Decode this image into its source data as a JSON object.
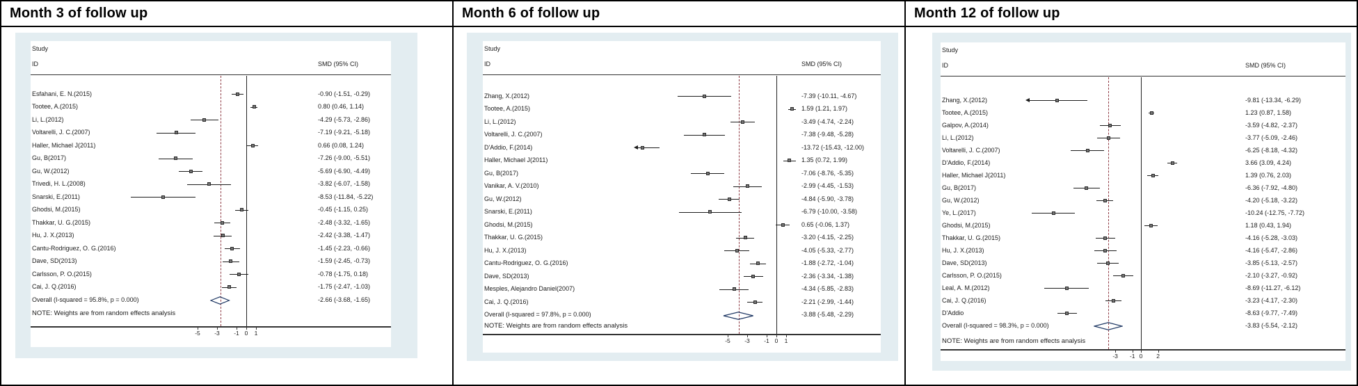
{
  "colors": {
    "graph_background": "#e3edf1",
    "plot_background": "#ffffff",
    "ci_line": "#1c1c1c",
    "marker_fill": "#757575",
    "marker_border": "#2b2b2b",
    "overall_dashed_line": "#8f3a43",
    "diamond_outline": "#1f3864",
    "axis_line": "#333333",
    "text": "#1a1a1a",
    "frame_border": "#000000"
  },
  "chart_data": [
    {
      "type": "scatter",
      "variant": "forest-plot-meta-analysis",
      "title": "Month 3 of follow up",
      "columns": {
        "study": "Study",
        "id": "ID",
        "smd": "SMD (95% CI)"
      },
      "note": "NOTE: Weights are from random effects analysis",
      "xticks": [
        -5,
        -3,
        -1,
        0,
        1
      ],
      "xlim": [
        -12.6,
        2.0
      ],
      "zero_line": 0,
      "overall_line": -2.66,
      "legend_position": "none",
      "grid": false,
      "studies": [
        {
          "id": "Esfahani, E. N.(2015)",
          "smd": -0.9,
          "lo": -1.51,
          "hi": -0.29,
          "ci_text": "-0.90 (-1.51, -0.29)"
        },
        {
          "id": "Tootee, A.(2015)",
          "smd": 0.8,
          "lo": 0.46,
          "hi": 1.14,
          "ci_text": "0.80 (0.46, 1.14)"
        },
        {
          "id": "Li, L.(2012)",
          "smd": -4.29,
          "lo": -5.73,
          "hi": -2.86,
          "ci_text": "-4.29 (-5.73, -2.86)"
        },
        {
          "id": "Voltarelli, J. C.(2007)",
          "smd": -7.19,
          "lo": -9.21,
          "hi": -5.18,
          "ci_text": "-7.19 (-9.21, -5.18)"
        },
        {
          "id": "Haller, Michael J(2011)",
          "smd": 0.66,
          "lo": 0.08,
          "hi": 1.24,
          "ci_text": "0.66 (0.08, 1.24)"
        },
        {
          "id": "Gu, B(2017)",
          "smd": -7.26,
          "lo": -9.0,
          "hi": -5.51,
          "ci_text": "-7.26 (-9.00, -5.51)"
        },
        {
          "id": "Gu, W.(2012)",
          "smd": -5.69,
          "lo": -6.9,
          "hi": -4.49,
          "ci_text": "-5.69 (-6.90, -4.49)"
        },
        {
          "id": "Trivedi, H. L.(2008)",
          "smd": -3.82,
          "lo": -6.07,
          "hi": -1.58,
          "ci_text": "-3.82 (-6.07, -1.58)"
        },
        {
          "id": "Snarski, E.(2011)",
          "smd": -8.53,
          "lo": -11.84,
          "hi": -5.22,
          "ci_text": "-8.53 (-11.84, -5.22)"
        },
        {
          "id": "Ghodsi, M.(2015)",
          "smd": -0.45,
          "lo": -1.15,
          "hi": 0.25,
          "ci_text": "-0.45 (-1.15, 0.25)"
        },
        {
          "id": "Thakkar, U. G.(2015)",
          "smd": -2.48,
          "lo": -3.32,
          "hi": -1.65,
          "ci_text": "-2.48 (-3.32, -1.65)"
        },
        {
          "id": "Hu, J. X.(2013)",
          "smd": -2.42,
          "lo": -3.38,
          "hi": -1.47,
          "ci_text": "-2.42 (-3.38, -1.47)"
        },
        {
          "id": "Cantu-Rodriguez, O. G.(2016)",
          "smd": -1.45,
          "lo": -2.23,
          "hi": -0.66,
          "ci_text": "-1.45 (-2.23, -0.66)"
        },
        {
          "id": "Dave, SD(2013)",
          "smd": -1.59,
          "lo": -2.45,
          "hi": -0.73,
          "ci_text": "-1.59 (-2.45, -0.73)"
        },
        {
          "id": "Carlsson, P. O.(2015)",
          "smd": -0.78,
          "lo": -1.75,
          "hi": 0.18,
          "ci_text": "-0.78 (-1.75, 0.18)"
        },
        {
          "id": "Cai, J. Q.(2016)",
          "smd": -1.75,
          "lo": -2.47,
          "hi": -1.03,
          "ci_text": "-1.75 (-2.47, -1.03)"
        }
      ],
      "overall": {
        "id": "Overall  (I-squared = 95.8%, p = 0.000)",
        "smd": -2.66,
        "lo": -3.68,
        "hi": -1.65,
        "ci_text": "-2.66 (-3.68, -1.65)"
      }
    },
    {
      "type": "scatter",
      "variant": "forest-plot-meta-analysis",
      "title": "Month 6 of follow up",
      "columns": {
        "study": "Study",
        "id": "ID",
        "smd": "SMD (95% CI)"
      },
      "note": "NOTE: Weights are from random effects analysis",
      "xticks": [
        -5,
        -3,
        -1,
        0,
        1
      ],
      "xlim": [
        -14.2,
        2.2
      ],
      "zero_line": 0,
      "overall_line": -3.88,
      "legend_position": "none",
      "grid": false,
      "studies": [
        {
          "id": "Zhang, X.(2012)",
          "smd": -7.39,
          "lo": -10.11,
          "hi": -4.67,
          "ci_text": "-7.39 (-10.11, -4.67)"
        },
        {
          "id": "Tootee, A.(2015)",
          "smd": 1.59,
          "lo": 1.21,
          "hi": 1.97,
          "ci_text": "1.59 (1.21, 1.97)"
        },
        {
          "id": "Li, L.(2012)",
          "smd": -3.49,
          "lo": -4.74,
          "hi": -2.24,
          "ci_text": "-3.49 (-4.74, -2.24)"
        },
        {
          "id": "Voltarelli, J. C.(2007)",
          "smd": -7.38,
          "lo": -9.48,
          "hi": -5.28,
          "ci_text": "-7.38 (-9.48, -5.28)"
        },
        {
          "id": "D'Addio, F.(2014)",
          "smd": -13.72,
          "lo": -15.43,
          "hi": -12.0,
          "ci_text": "-13.72 (-15.43, -12.00)"
        },
        {
          "id": "Haller, Michael J(2011)",
          "smd": 1.35,
          "lo": 0.72,
          "hi": 1.99,
          "ci_text": "1.35 (0.72, 1.99)"
        },
        {
          "id": "Gu, B(2017)",
          "smd": -7.06,
          "lo": -8.76,
          "hi": -5.35,
          "ci_text": "-7.06 (-8.76, -5.35)"
        },
        {
          "id": "Vanikar, A. V.(2010)",
          "smd": -2.99,
          "lo": -4.45,
          "hi": -1.53,
          "ci_text": "-2.99 (-4.45, -1.53)"
        },
        {
          "id": "Gu, W.(2012)",
          "smd": -4.84,
          "lo": -5.9,
          "hi": -3.78,
          "ci_text": "-4.84 (-5.90, -3.78)"
        },
        {
          "id": "Snarski, E.(2011)",
          "smd": -6.79,
          "lo": -10.0,
          "hi": -3.58,
          "ci_text": "-6.79 (-10.00, -3.58)"
        },
        {
          "id": "Ghodsi, M.(2015)",
          "smd": 0.65,
          "lo": -0.06,
          "hi": 1.37,
          "ci_text": "0.65 (-0.06, 1.37)"
        },
        {
          "id": "Thakkar, U. G.(2015)",
          "smd": -3.2,
          "lo": -4.15,
          "hi": -2.25,
          "ci_text": "-3.20 (-4.15, -2.25)"
        },
        {
          "id": "Hu, J. X.(2013)",
          "smd": -4.05,
          "lo": -5.33,
          "hi": -2.77,
          "ci_text": "-4.05 (-5.33, -2.77)"
        },
        {
          "id": "Cantu-Rodriguez, O. G.(2016)",
          "smd": -1.88,
          "lo": -2.72,
          "hi": -1.04,
          "ci_text": "-1.88 (-2.72, -1.04)"
        },
        {
          "id": "Dave, SD(2013)",
          "smd": -2.36,
          "lo": -3.34,
          "hi": -1.38,
          "ci_text": "-2.36 (-3.34, -1.38)"
        },
        {
          "id": "Mesples, Alejandro Daniel(2007)",
          "smd": -4.34,
          "lo": -5.85,
          "hi": -2.83,
          "ci_text": "-4.34 (-5.85, -2.83)"
        },
        {
          "id": "Cai, J. Q.(2016)",
          "smd": -2.21,
          "lo": -2.99,
          "hi": -1.44,
          "ci_text": "-2.21 (-2.99, -1.44)"
        }
      ],
      "overall": {
        "id": "Overall  (I-squared = 97.8%, p = 0.000)",
        "smd": -3.88,
        "lo": -5.48,
        "hi": -2.29,
        "ci_text": "-3.88 (-5.48, -2.29)"
      }
    },
    {
      "type": "scatter",
      "variant": "forest-plot-meta-analysis",
      "title": "Month 12 of follow up",
      "columns": {
        "study": "Study",
        "id": "ID",
        "smd": "SMD (95% CI)"
      },
      "note": "NOTE: Weights are from random effects analysis",
      "xticks": [
        -3,
        -1,
        0,
        2
      ],
      "xlim": [
        -13.0,
        4.6
      ],
      "zero_line": 0,
      "overall_line": -3.83,
      "legend_position": "none",
      "grid": false,
      "studies": [
        {
          "id": "Zhang, X.(2012)",
          "smd": -9.81,
          "lo": -13.34,
          "hi": -6.29,
          "ci_text": "-9.81 (-13.34, -6.29)"
        },
        {
          "id": "Tootee, A.(2015)",
          "smd": 1.23,
          "lo": 0.87,
          "hi": 1.58,
          "ci_text": "1.23 (0.87, 1.58)"
        },
        {
          "id": "Galpov, A.(2014)",
          "smd": -3.59,
          "lo": -4.82,
          "hi": -2.37,
          "ci_text": "-3.59 (-4.82, -2.37)"
        },
        {
          "id": "Li, L.(2012)",
          "smd": -3.77,
          "lo": -5.09,
          "hi": -2.46,
          "ci_text": "-3.77 (-5.09, -2.46)"
        },
        {
          "id": "Voltarelli, J. C.(2007)",
          "smd": -6.25,
          "lo": -8.18,
          "hi": -4.32,
          "ci_text": "-6.25 (-8.18, -4.32)"
        },
        {
          "id": "D'Addio, F.(2014)",
          "smd": 3.66,
          "lo": 3.09,
          "hi": 4.24,
          "ci_text": "3.66 (3.09, 4.24)"
        },
        {
          "id": "Haller, Michael J(2011)",
          "smd": 1.39,
          "lo": 0.76,
          "hi": 2.03,
          "ci_text": "1.39 (0.76, 2.03)"
        },
        {
          "id": "Gu, B(2017)",
          "smd": -6.36,
          "lo": -7.92,
          "hi": -4.8,
          "ci_text": "-6.36 (-7.92, -4.80)"
        },
        {
          "id": "Gu, W.(2012)",
          "smd": -4.2,
          "lo": -5.18,
          "hi": -3.22,
          "ci_text": "-4.20 (-5.18, -3.22)"
        },
        {
          "id": "Ye, L.(2017)",
          "smd": -10.24,
          "lo": -12.75,
          "hi": -7.72,
          "ci_text": "-10.24 (-12.75, -7.72)"
        },
        {
          "id": "Ghodsi, M.(2015)",
          "smd": 1.18,
          "lo": 0.43,
          "hi": 1.94,
          "ci_text": "1.18 (0.43, 1.94)"
        },
        {
          "id": "Thakkar, U. G.(2015)",
          "smd": -4.16,
          "lo": -5.28,
          "hi": -3.03,
          "ci_text": "-4.16 (-5.28, -3.03)"
        },
        {
          "id": "Hu, J. X.(2013)",
          "smd": -4.16,
          "lo": -5.47,
          "hi": -2.86,
          "ci_text": "-4.16 (-5.47, -2.86)"
        },
        {
          "id": "Dave, SD(2013)",
          "smd": -3.85,
          "lo": -5.13,
          "hi": -2.57,
          "ci_text": "-3.85 (-5.13, -2.57)"
        },
        {
          "id": "Carlsson, P. O.(2015)",
          "smd": -2.1,
          "lo": -3.27,
          "hi": -0.92,
          "ci_text": "-2.10 (-3.27, -0.92)"
        },
        {
          "id": "Leal, A. M.(2012)",
          "smd": -8.69,
          "lo": -11.27,
          "hi": -6.12,
          "ci_text": "-8.69 (-11.27, -6.12)"
        },
        {
          "id": "Cai, J. Q.(2016)",
          "smd": -3.23,
          "lo": -4.17,
          "hi": -2.3,
          "ci_text": "-3.23 (-4.17, -2.30)"
        },
        {
          "id": "D'Addio",
          "smd": -8.63,
          "lo": -9.77,
          "hi": -7.49,
          "ci_text": "-8.63 (-9.77, -7.49)"
        }
      ],
      "overall": {
        "id": "Overall  (I-squared = 98.3%, p = 0.000)",
        "smd": -3.83,
        "lo": -5.54,
        "hi": -2.12,
        "ci_text": "-3.83 (-5.54, -2.12)"
      }
    }
  ]
}
